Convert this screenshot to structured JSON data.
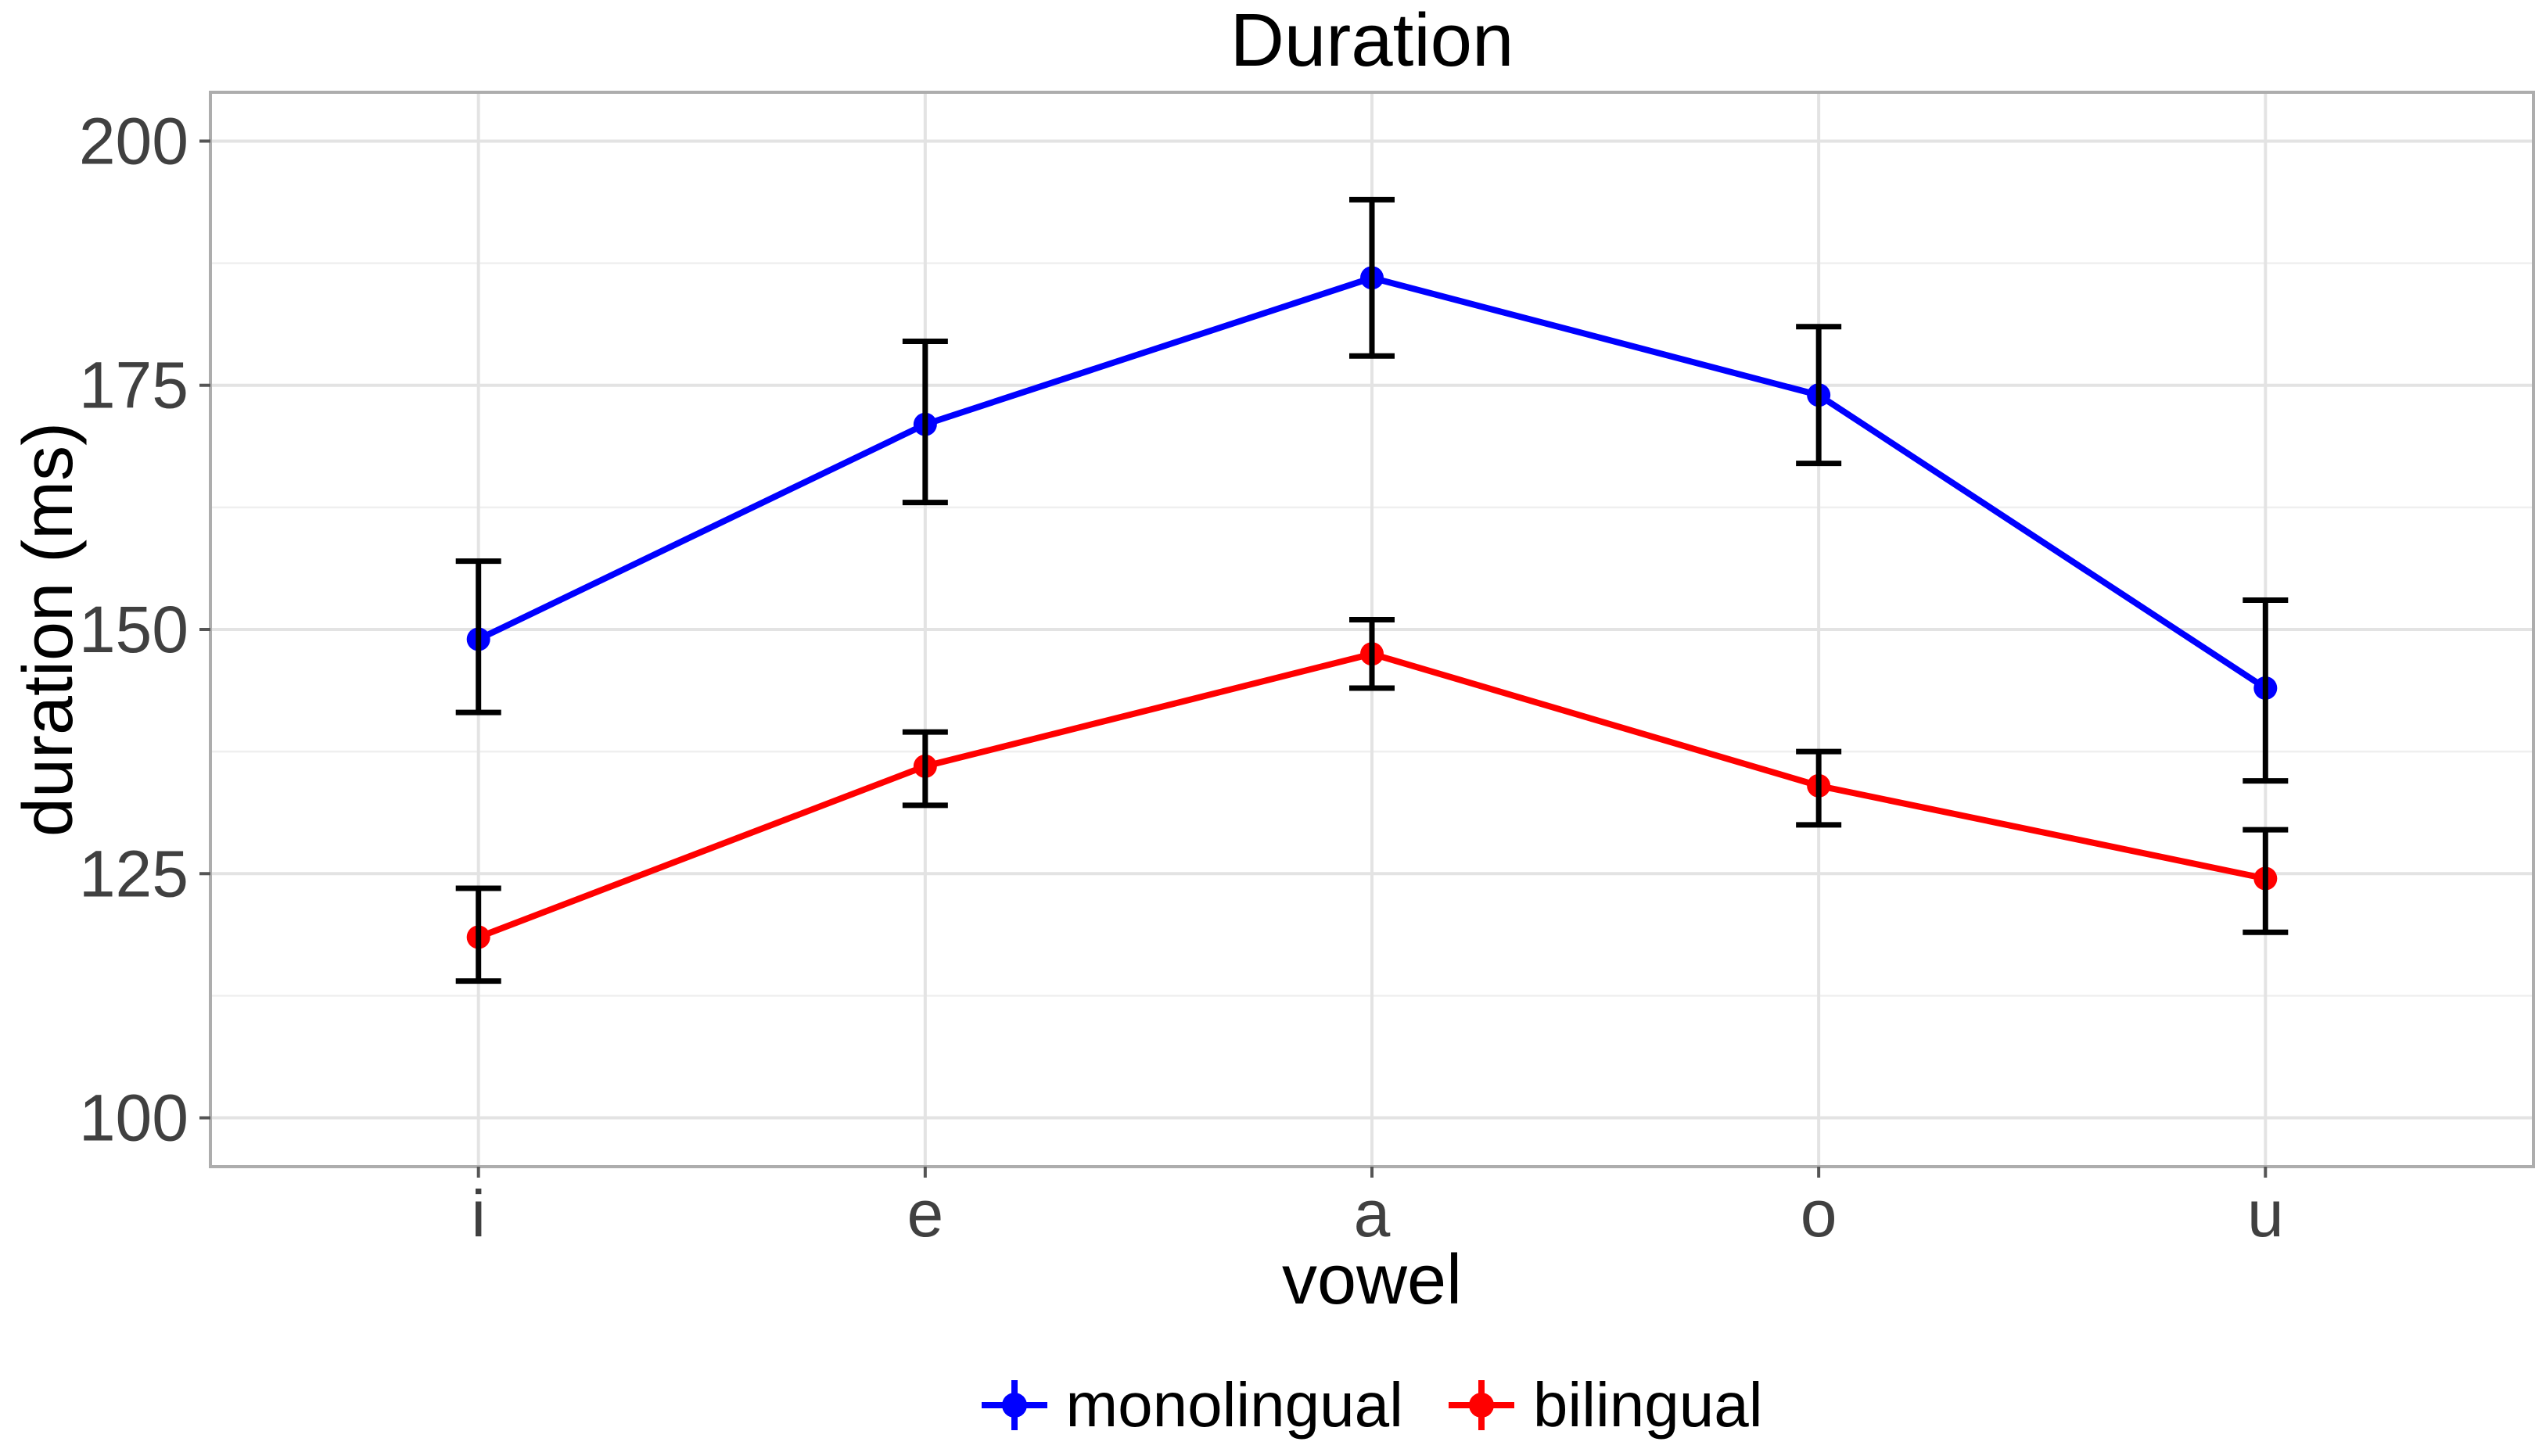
{
  "title": "Duration",
  "axes": {
    "x": {
      "label": "vowel",
      "categories": [
        "i",
        "e",
        "a",
        "o",
        "u"
      ]
    },
    "y": {
      "label": "duration (ms)",
      "ticks": [
        100,
        125,
        150,
        175,
        200
      ],
      "minor_ticks": [
        112.5,
        137.5,
        162.5,
        187.5
      ],
      "range": [
        95,
        205
      ]
    }
  },
  "legend": {
    "items": [
      {
        "label": "monolingual",
        "color": "#0000FF"
      },
      {
        "label": "bilingual",
        "color": "#FF0000"
      }
    ]
  },
  "chart_data": {
    "type": "line",
    "title": "Duration",
    "xlabel": "vowel",
    "ylabel": "duration (ms)",
    "categories": [
      "i",
      "e",
      "a",
      "o",
      "u"
    ],
    "series": [
      {
        "name": "monolingual",
        "color": "#0000FF",
        "values": [
          149,
          171,
          186,
          174,
          144
        ],
        "ci_low": [
          141.5,
          163,
          178,
          167,
          134.5
        ],
        "ci_high": [
          157,
          179.5,
          194,
          181,
          153
        ]
      },
      {
        "name": "bilingual",
        "color": "#FF0000",
        "values": [
          118.5,
          136,
          147.5,
          134,
          124.5
        ],
        "ci_low": [
          114,
          132,
          144,
          130,
          119
        ],
        "ci_high": [
          123.5,
          139.5,
          151,
          137.5,
          129.5
        ]
      }
    ],
    "ylim": [
      95,
      205
    ],
    "grid": true,
    "errorbar_color": "#000000",
    "legend_position": "bottom"
  },
  "style_colors": {
    "grid_major": "#E3E3E3",
    "grid_minor": "#EFEFEF",
    "panel_border": "#ADADAD",
    "tick_mark": "#555555",
    "tick_label": "#404040"
  }
}
